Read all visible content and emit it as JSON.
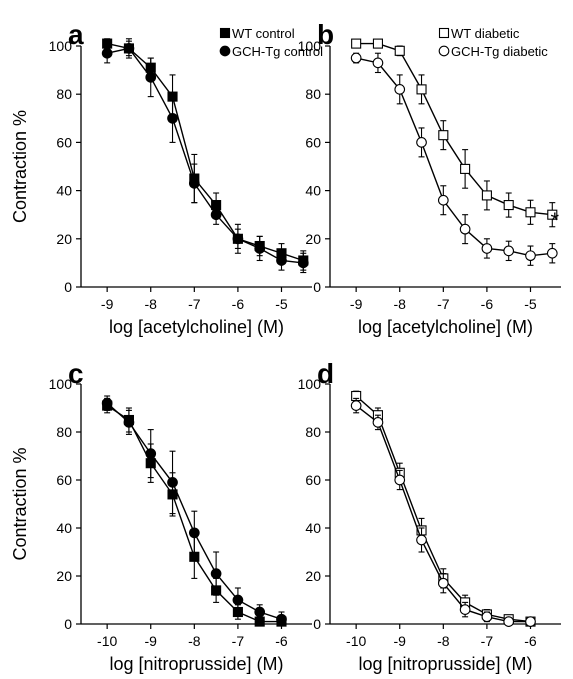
{
  "chart_data": [
    {
      "panel": "a",
      "type": "line",
      "xlabel": "log [acetylcholine] (M)",
      "ylabel": "Contraction %",
      "xlim": [
        -9.6,
        -4.3
      ],
      "ylim": [
        0,
        100
      ],
      "xticks": [
        -9,
        -8,
        -7,
        -6,
        -5
      ],
      "yticks": [
        0,
        20,
        40,
        60,
        80,
        100
      ],
      "legend": "top-right",
      "annotation": "",
      "series": [
        {
          "name": "WT control",
          "marker": "filled-square",
          "x": [
            -9,
            -8.5,
            -8,
            -7.5,
            -7,
            -6.5,
            -6,
            -5.5,
            -5,
            -4.5
          ],
          "y": [
            101,
            99,
            91,
            79,
            45,
            34,
            20,
            17,
            14,
            11
          ],
          "err": [
            2,
            3,
            4,
            9,
            10,
            5,
            4,
            4,
            4,
            4
          ]
        },
        {
          "name": "GCH-Tg control",
          "marker": "filled-circle",
          "x": [
            -9,
            -8.5,
            -8,
            -7.5,
            -7,
            -6.5,
            -6,
            -5.5,
            -5,
            -4.5
          ],
          "y": [
            97,
            99,
            87,
            70,
            43,
            30,
            20,
            16,
            11,
            10
          ],
          "err": [
            4,
            4,
            8,
            10,
            8,
            4,
            6,
            5,
            4,
            4
          ]
        }
      ]
    },
    {
      "panel": "b",
      "type": "line",
      "xlabel": "log [acetylcholine] (M)",
      "ylabel": "",
      "xlim": [
        -9.6,
        -4.3
      ],
      "ylim": [
        0,
        100
      ],
      "xticks": [
        -9,
        -8,
        -7,
        -6,
        -5
      ],
      "yticks": [
        0,
        20,
        40,
        60,
        80,
        100
      ],
      "legend": "top-right",
      "annotation": "*",
      "series": [
        {
          "name": "WT diabetic",
          "marker": "open-square",
          "x": [
            -9,
            -8.5,
            -8,
            -7.5,
            -7,
            -6.5,
            -6,
            -5.5,
            -5,
            -4.5
          ],
          "y": [
            101,
            101,
            98,
            82,
            63,
            49,
            38,
            34,
            31,
            30
          ],
          "err": [
            1,
            1,
            2,
            6,
            6,
            8,
            6,
            5,
            5,
            5
          ]
        },
        {
          "name": "GCH-Tg diabetic",
          "marker": "open-circle",
          "x": [
            -9,
            -8.5,
            -8,
            -7.5,
            -7,
            -6.5,
            -6,
            -5.5,
            -5,
            -4.5
          ],
          "y": [
            95,
            93,
            82,
            60,
            36,
            24,
            16,
            15,
            13,
            14
          ],
          "err": [
            2,
            4,
            6,
            6,
            6,
            6,
            4,
            4,
            4,
            4
          ]
        }
      ]
    },
    {
      "panel": "c",
      "type": "line",
      "xlabel": "log [nitroprusside] (M)",
      "ylabel": "Contraction %",
      "xlim": [
        -10.6,
        -5.3
      ],
      "ylim": [
        0,
        100
      ],
      "xticks": [
        -10,
        -9,
        -8,
        -7,
        -6
      ],
      "yticks": [
        0,
        20,
        40,
        60,
        80,
        100
      ],
      "legend": "",
      "annotation": "",
      "series": [
        {
          "name": "WT control",
          "marker": "filled-square",
          "x": [
            -10,
            -9.5,
            -9,
            -8.5,
            -8,
            -7.5,
            -7,
            -6.5,
            -6
          ],
          "y": [
            91,
            85,
            67,
            54,
            28,
            14,
            5,
            1,
            1
          ],
          "err": [
            3,
            5,
            8,
            9,
            9,
            5,
            3,
            2,
            2
          ]
        },
        {
          "name": "GCH-Tg control",
          "marker": "filled-circle",
          "x": [
            -10,
            -9.5,
            -9,
            -8.5,
            -8,
            -7.5,
            -7,
            -6.5,
            -6
          ],
          "y": [
            92,
            84,
            71,
            59,
            38,
            21,
            10,
            5,
            2
          ],
          "err": [
            3,
            5,
            10,
            13,
            9,
            9,
            5,
            3,
            3
          ]
        }
      ]
    },
    {
      "panel": "d",
      "type": "line",
      "xlabel": "log [nitroprusside] (M)",
      "ylabel": "",
      "xlim": [
        -10.6,
        -5.3
      ],
      "ylim": [
        0,
        100
      ],
      "xticks": [
        -10,
        -9,
        -8,
        -7,
        -6
      ],
      "yticks": [
        0,
        20,
        40,
        60,
        80,
        100
      ],
      "legend": "",
      "annotation": "",
      "series": [
        {
          "name": "WT diabetic",
          "marker": "open-square",
          "x": [
            -10,
            -9.5,
            -9,
            -8.5,
            -8,
            -7.5,
            -7,
            -6.5,
            -6
          ],
          "y": [
            95,
            87,
            63,
            39,
            19,
            9,
            4,
            2,
            1
          ],
          "err": [
            2,
            3,
            4,
            5,
            4,
            3,
            2,
            1,
            1
          ]
        },
        {
          "name": "GCH-Tg diabetic",
          "marker": "open-circle",
          "x": [
            -10,
            -9.5,
            -9,
            -8.5,
            -8,
            -7.5,
            -7,
            -6.5,
            -6
          ],
          "y": [
            91,
            84,
            60,
            35,
            17,
            6,
            3,
            1,
            1
          ],
          "err": [
            3,
            3,
            4,
            5,
            4,
            3,
            2,
            1,
            1
          ]
        }
      ]
    }
  ]
}
